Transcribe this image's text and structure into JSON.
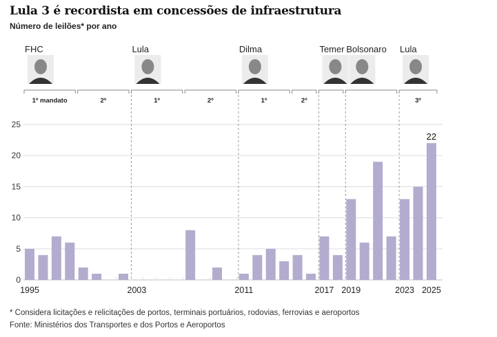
{
  "title": "Lula 3 é recordista em concessões de infraestrutura",
  "subtitle": "Número de leilões* por ano",
  "footnote": "* Considera licitações e relicitações de portos, terminais portuários, rodovias, ferrovias e aeroportos",
  "source": "Fonte: Ministérios dos Transportes e dos Portos e Aeroportos",
  "colors": {
    "bar": "#b3acce",
    "grid": "#e2e2e2",
    "divider": "#999999"
  },
  "presidents": [
    {
      "name": "FHC",
      "start": 1995,
      "end": 2002,
      "terms": [
        {
          "label": "1º mandato",
          "start": 1995,
          "end": 1998
        },
        {
          "label": "2º",
          "start": 1999,
          "end": 2002
        }
      ]
    },
    {
      "name": "Lula",
      "start": 2003,
      "end": 2010,
      "terms": [
        {
          "label": "1º",
          "start": 2003,
          "end": 2006
        },
        {
          "label": "2º",
          "start": 2007,
          "end": 2010
        }
      ]
    },
    {
      "name": "Dilma",
      "start": 2011,
      "end": 2016,
      "terms": [
        {
          "label": "1º",
          "start": 2011,
          "end": 2014
        },
        {
          "label": "2º",
          "start": 2015,
          "end": 2016
        }
      ]
    },
    {
      "name": "Temer",
      "start": 2017,
      "end": 2018,
      "terms": [
        {
          "label": "",
          "start": 2017,
          "end": 2018
        }
      ]
    },
    {
      "name": "Bolsonaro",
      "start": 2019,
      "end": 2022,
      "terms": [
        {
          "label": "",
          "start": 2019,
          "end": 2022
        }
      ]
    },
    {
      "name": "Lula",
      "start": 2023,
      "end": 2025,
      "terms": [
        {
          "label": "3º",
          "start": 2023,
          "end": 2025
        }
      ]
    }
  ],
  "chart_data": {
    "type": "bar",
    "categories": [
      1995,
      1996,
      1997,
      1998,
      1999,
      2000,
      2001,
      2002,
      2003,
      2004,
      2005,
      2006,
      2007,
      2008,
      2009,
      2010,
      2011,
      2012,
      2013,
      2014,
      2015,
      2016,
      2017,
      2018,
      2019,
      2020,
      2021,
      2022,
      2023,
      2024,
      2025
    ],
    "values": [
      5,
      4,
      7,
      6,
      2,
      1,
      0,
      1,
      0,
      0,
      0,
      0,
      8,
      0,
      2,
      0,
      1,
      4,
      5,
      3,
      4,
      1,
      7,
      4,
      13,
      6,
      19,
      7,
      13,
      15,
      22
    ],
    "x_tick_labels": [
      "1995",
      "2003",
      "2011",
      "2017",
      "2019",
      "2023",
      "2025"
    ],
    "y_ticks": [
      0,
      5,
      10,
      15,
      20,
      25
    ],
    "ylim": [
      0,
      25
    ],
    "grid": true,
    "data_labels": [
      {
        "category": 2025,
        "label": "22"
      }
    ],
    "dividers": [
      2003,
      2011,
      2017,
      2019,
      2023
    ]
  }
}
